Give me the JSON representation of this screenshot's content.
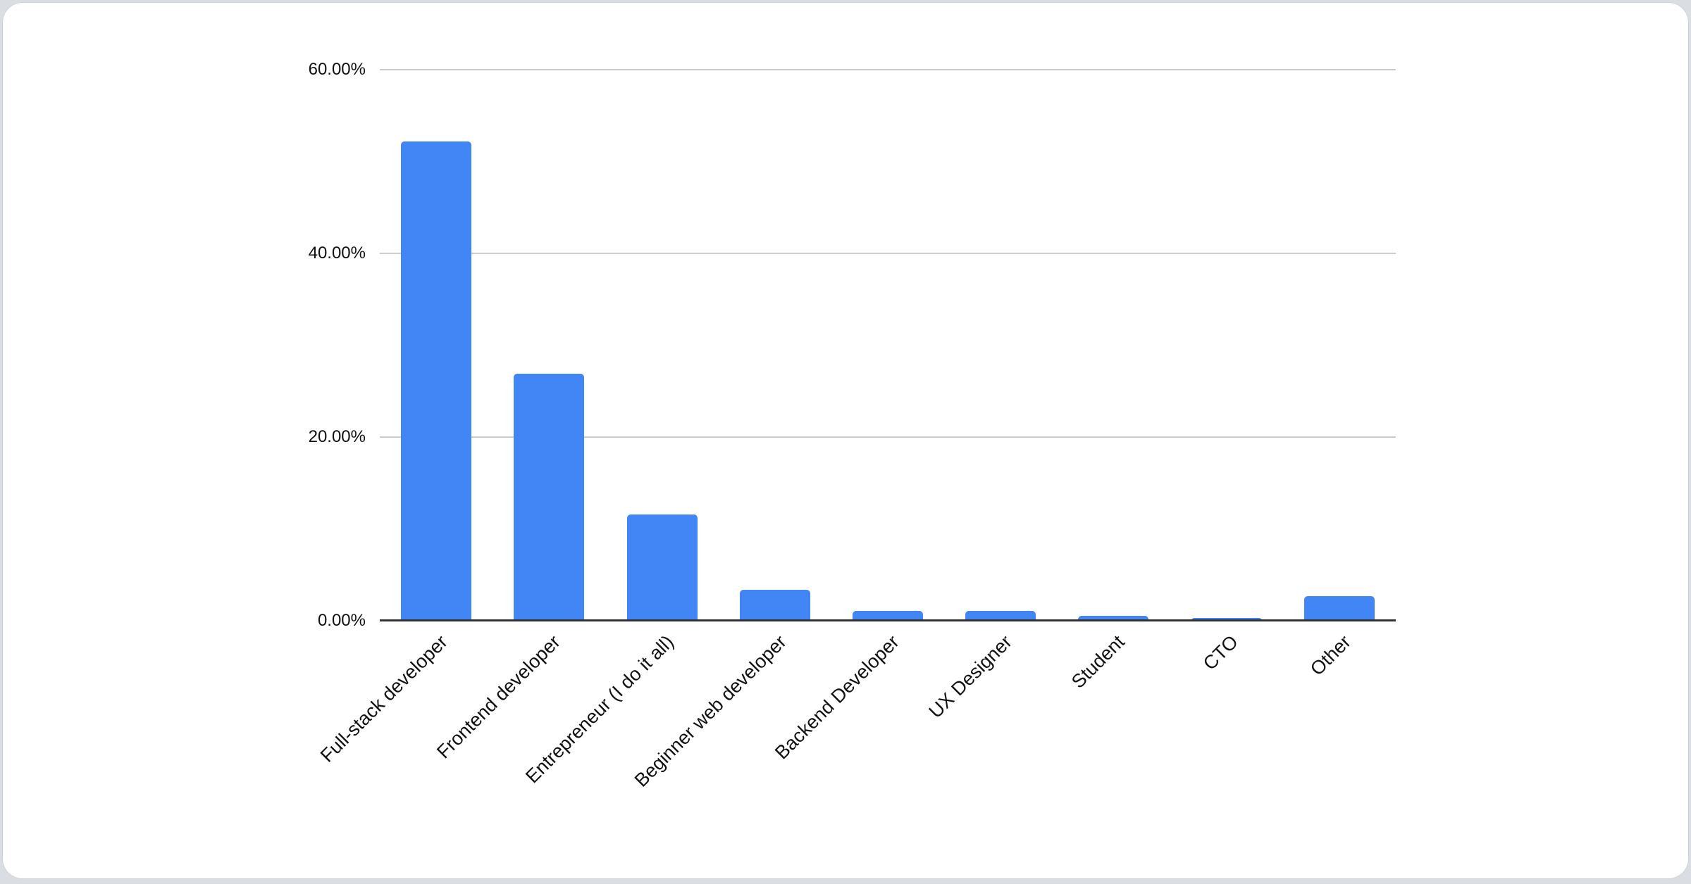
{
  "canvas": {
    "background_color": "#dadde1",
    "card_color": "#ffffff",
    "text_color": "#111111"
  },
  "chart_data": {
    "type": "bar",
    "title": "",
    "xlabel": "",
    "ylabel": "",
    "categories": [
      "Full-stack developer",
      "Frontend developer",
      "Entrepreneur (I do it all)",
      "Beginner web developer",
      "Backend Developer",
      "UX Designer",
      "Student",
      "CTO",
      "Other"
    ],
    "values": [
      52.2,
      26.9,
      11.6,
      3.4,
      1.1,
      1.1,
      0.5,
      0.3,
      2.7
    ],
    "ylim": [
      0,
      60
    ],
    "yticks": [
      {
        "value": 0,
        "label": "0.00%"
      },
      {
        "value": 20,
        "label": "20.00%"
      },
      {
        "value": 40,
        "label": "40.00%"
      },
      {
        "value": 60,
        "label": "60.00%"
      }
    ],
    "grid": true,
    "legend_position": "none",
    "bar_color": "#4285f4",
    "gridline_color": "#cccccc",
    "axis_line_color": "#333333",
    "label_rotation_deg": -45
  }
}
